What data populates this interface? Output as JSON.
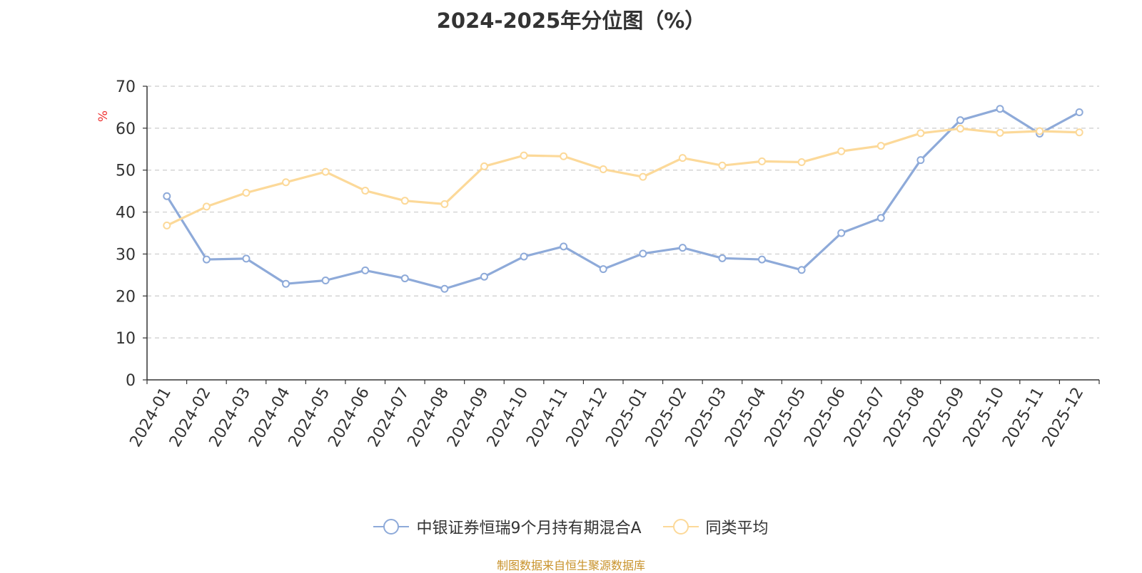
{
  "title": "2024-2025年分位图（%）",
  "source": "制图数据来自恒生聚源数据库",
  "chart_data": {
    "type": "line",
    "title": "2024-2025年分位图（%）",
    "ylabel": "%",
    "ylim": [
      0,
      70
    ],
    "yticks": [
      0,
      10,
      20,
      30,
      40,
      50,
      60,
      70
    ],
    "grid": true,
    "legend_position": "bottom",
    "categories": [
      "2024-01",
      "2024-02",
      "2024-03",
      "2024-04",
      "2024-05",
      "2024-06",
      "2024-07",
      "2024-08",
      "2024-09",
      "2024-10",
      "2024-11",
      "2024-12",
      "2025-01",
      "2025-02",
      "2025-03",
      "2025-04",
      "2025-05",
      "2025-06",
      "2025-07",
      "2025-08",
      "2025-09",
      "2025-10",
      "2025-11",
      "2025-12"
    ],
    "series": [
      {
        "name": "中银证券恒瑞9个月持有期混合A",
        "color": "#8eaad9",
        "values": [
          43.8,
          28.7,
          28.9,
          22.9,
          23.7,
          26.1,
          24.2,
          21.7,
          24.6,
          29.4,
          31.8,
          26.4,
          30.1,
          31.5,
          29.0,
          28.7,
          26.2,
          35.0,
          38.6,
          52.4,
          61.9,
          64.6,
          58.7,
          63.8
        ]
      },
      {
        "name": "同类平均",
        "color": "#fcd999",
        "values": [
          36.8,
          41.3,
          44.6,
          47.1,
          49.6,
          45.1,
          42.7,
          41.9,
          50.9,
          53.5,
          53.3,
          50.2,
          48.4,
          52.9,
          51.1,
          52.1,
          51.9,
          54.5,
          55.8,
          58.8,
          59.9,
          58.9,
          59.3,
          59.0
        ]
      }
    ]
  }
}
